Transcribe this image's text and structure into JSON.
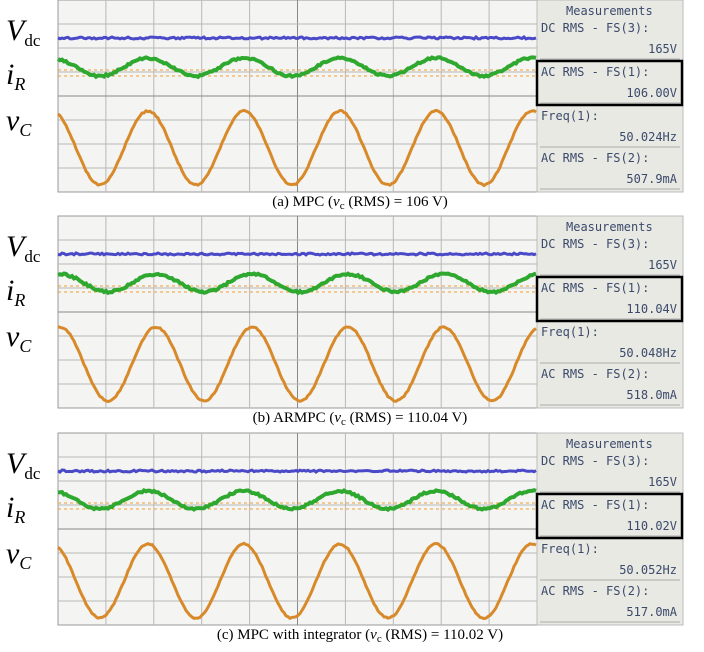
{
  "panels": [
    {
      "labels": [
        {
          "main": "V",
          "sub": "dc"
        },
        {
          "main": "i",
          "sub": "R"
        },
        {
          "main": "v",
          "sub": "C"
        }
      ],
      "measurements": {
        "header": "Measurements",
        "items": [
          {
            "name": "DC RMS - FS(3):",
            "value": "165V"
          },
          {
            "name": "AC RMS - FS(1):",
            "value": "106.00V"
          },
          {
            "name": "Freq(1):",
            "value": "50.024Hz"
          },
          {
            "name": "AC RMS - FS(2):",
            "value": "507.9mA"
          }
        ]
      },
      "caption": {
        "prefix": "(a)  MPC (",
        "var": "v",
        "sub": "c",
        "suffix": " (RMS) = 106 V)"
      }
    },
    {
      "labels": [
        {
          "main": "V",
          "sub": "dc"
        },
        {
          "main": "i",
          "sub": "R"
        },
        {
          "main": "v",
          "sub": "C"
        }
      ],
      "measurements": {
        "header": "Measurements",
        "items": [
          {
            "name": "DC RMS - FS(3):",
            "value": "165V"
          },
          {
            "name": "AC RMS - FS(1):",
            "value": "110.04V"
          },
          {
            "name": "Freq(1):",
            "value": "50.048Hz"
          },
          {
            "name": "AC RMS - FS(2):",
            "value": "518.0mA"
          }
        ]
      },
      "caption": {
        "prefix": "(b)  ARMPC (",
        "var": "v",
        "sub": "c",
        "suffix": " (RMS) = 110.04 V)"
      }
    },
    {
      "labels": [
        {
          "main": "V",
          "sub": "dc"
        },
        {
          "main": "i",
          "sub": "R"
        },
        {
          "main": "v",
          "sub": "C"
        }
      ],
      "measurements": {
        "header": "Measurements",
        "items": [
          {
            "name": "DC RMS - FS(3):",
            "value": "165V"
          },
          {
            "name": "AC RMS - FS(1):",
            "value": "110.02V"
          },
          {
            "name": "Freq(1):",
            "value": "50.052Hz"
          },
          {
            "name": "AC RMS - FS(2):",
            "value": "517.0mA"
          }
        ]
      },
      "caption": {
        "prefix": "(c)  MPC with integrator (",
        "var": "v",
        "sub": "c",
        "suffix": " (RMS) = 110.02 V)"
      }
    }
  ]
}
